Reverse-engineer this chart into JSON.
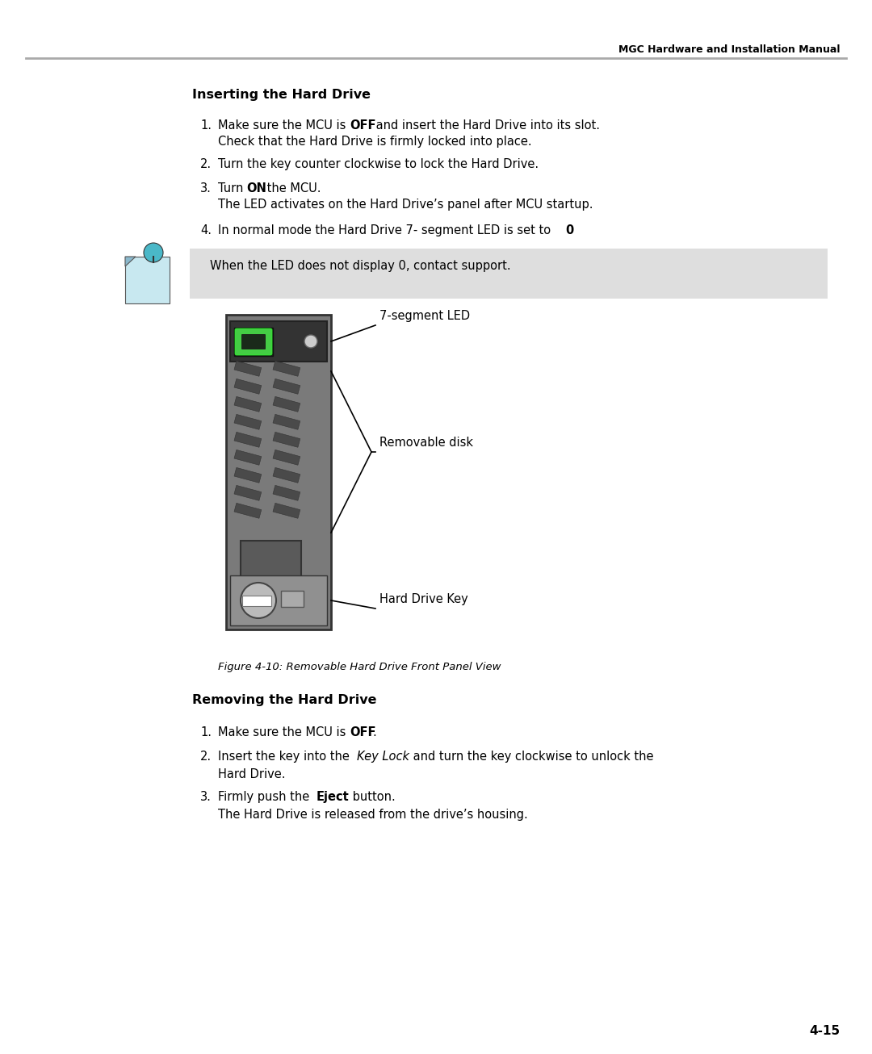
{
  "page_title": "MGC Hardware and Installation Manual",
  "page_number": "4-15",
  "section1_title": "Inserting the Hard Drive",
  "note_text": "When the LED does not display 0, contact support.",
  "figure_caption": "Figure 4-10: Removable Hard Drive Front Panel View",
  "section2_title": "Removing the Hard Drive",
  "bg_color": "#ffffff",
  "note_bg": "#dedede",
  "header_line_color": "#aaaaaa",
  "panel_gray": "#7a7a7a",
  "panel_dark": "#555555",
  "panel_ledbox": "#333333",
  "led_green": "#44cc44",
  "led_small_color": "#cccccc"
}
